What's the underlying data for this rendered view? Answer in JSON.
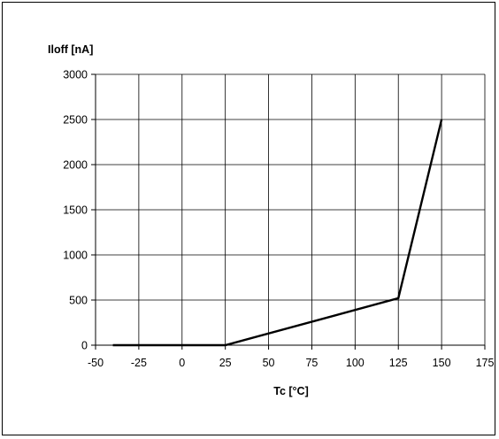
{
  "chart_data": {
    "type": "line",
    "ylabel": "Iloff [nA]",
    "xlabel": "Tc [°C]",
    "xlim": [
      -50,
      175
    ],
    "ylim": [
      0,
      3000
    ],
    "xticks": [
      -50,
      -25,
      0,
      25,
      50,
      75,
      100,
      125,
      150,
      175
    ],
    "yticks": [
      0,
      500,
      1000,
      1500,
      2000,
      2500,
      3000
    ],
    "grid": true,
    "legend": "none",
    "series": [
      {
        "x": [
          -40,
          25,
          125,
          150
        ],
        "y": [
          0,
          0,
          520,
          2500
        ],
        "color": "#000000"
      }
    ]
  }
}
